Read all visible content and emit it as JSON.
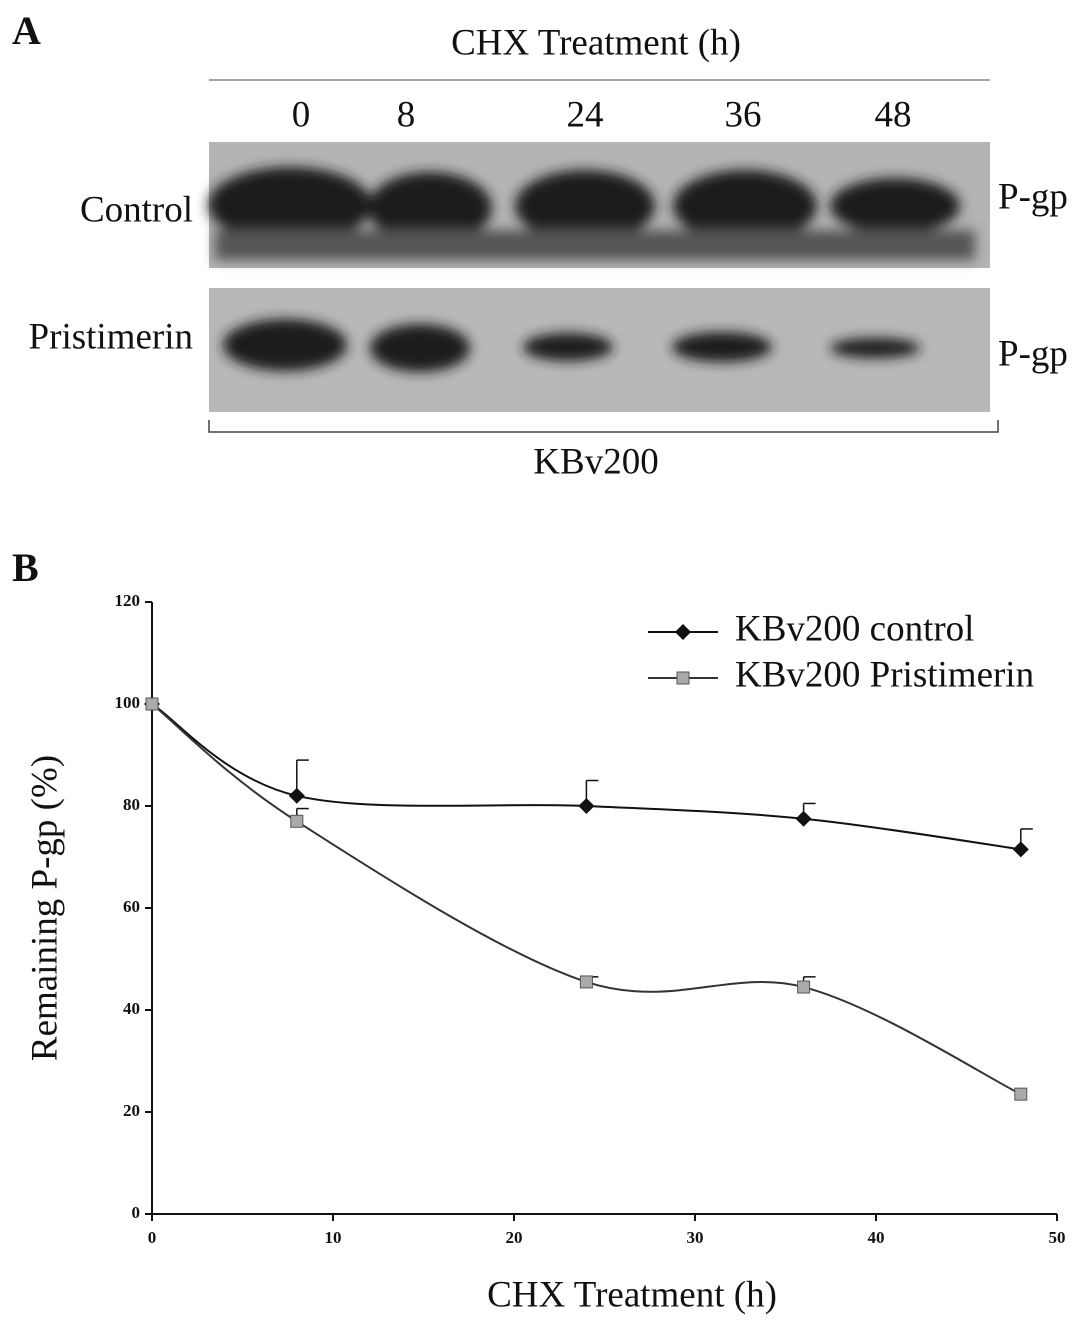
{
  "panel_a": {
    "label": "A",
    "title": "CHX Treatment (h)",
    "lanes": [
      "0",
      "8",
      "24",
      "36",
      "48"
    ],
    "rows": [
      "Control",
      "Pristimerin"
    ],
    "band_labels": [
      "P-gp",
      "P-gp"
    ],
    "cell_line": "KBv200"
  },
  "panel_b_label": "B",
  "chart_data": {
    "type": "line",
    "x_label": "CHX Treatment (h)",
    "y_label": "Remaining P-gp (%)",
    "x": [
      0,
      8,
      24,
      36,
      48
    ],
    "series": [
      {
        "name": "KBv200 control",
        "color": "#111111",
        "marker": "diamond",
        "values": [
          100,
          82,
          80,
          77.5,
          71.5
        ],
        "errors": [
          0,
          7,
          5,
          3,
          4
        ]
      },
      {
        "name": "KBv200 Pristimerin",
        "color": "#aaaaaa",
        "marker": "square",
        "values": [
          100,
          77,
          45.5,
          44.5,
          23.5
        ],
        "errors": [
          0,
          2.5,
          1,
          2,
          0
        ]
      }
    ],
    "xlim": [
      0,
      50
    ],
    "xticks": [
      0,
      10,
      20,
      30,
      40,
      50
    ],
    "ylim": [
      0,
      120
    ],
    "yticks": [
      0,
      20,
      40,
      60,
      80,
      100,
      120
    ],
    "legend": "top-right",
    "grid": false
  }
}
